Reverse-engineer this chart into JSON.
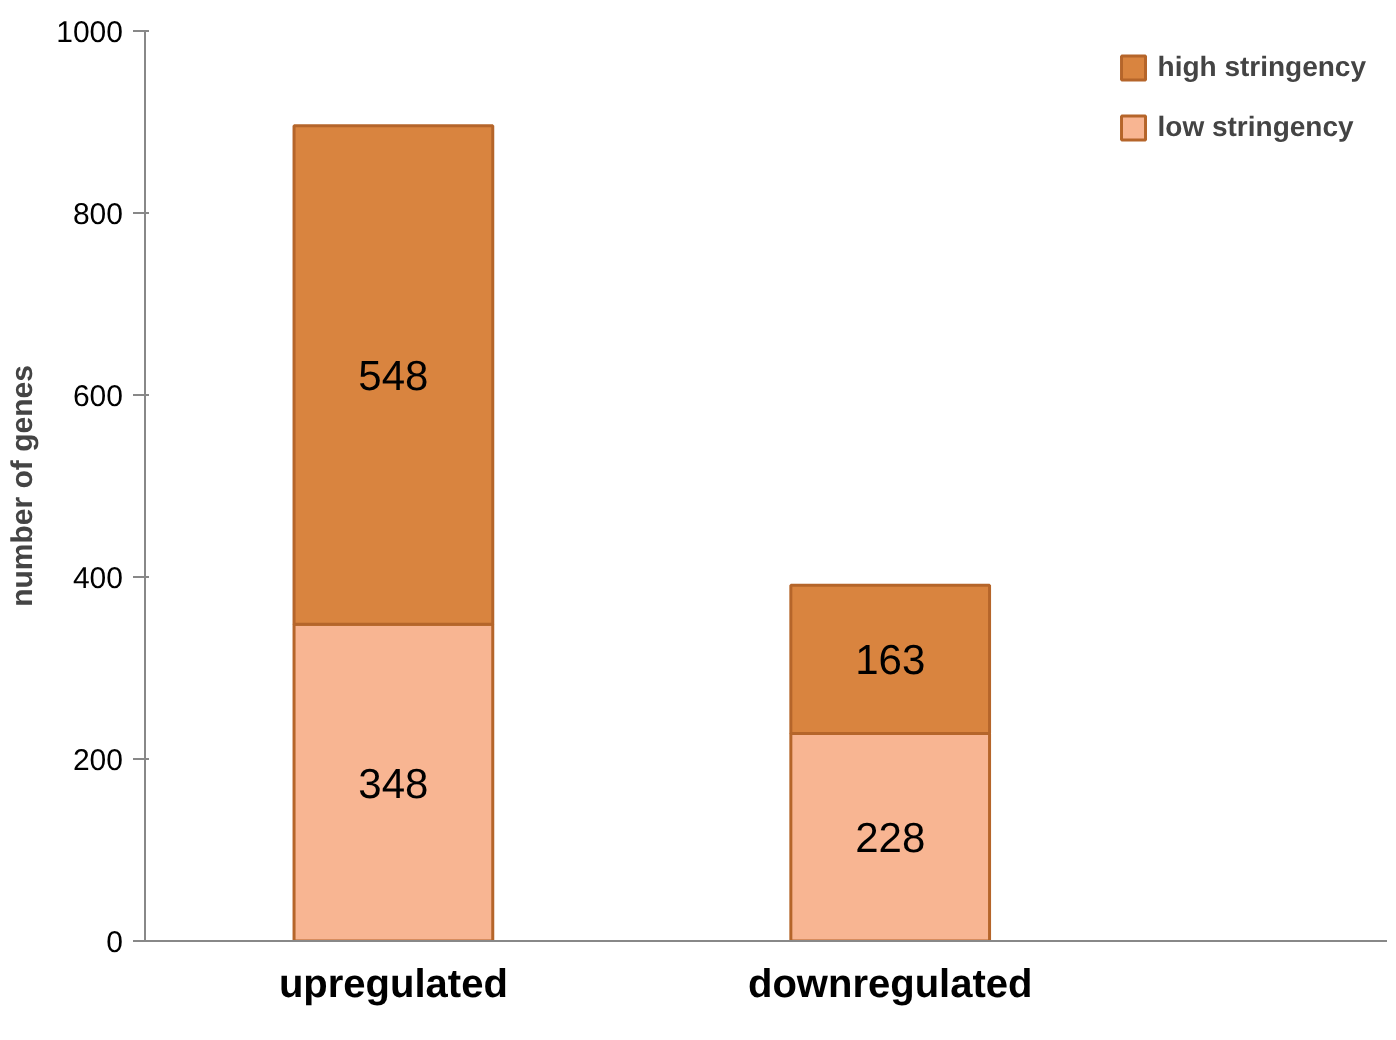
{
  "chart_data": {
    "type": "bar",
    "stacked": true,
    "categories": [
      "upregulated",
      "downregulated"
    ],
    "ylabel": "number of genes",
    "ylim": [
      0,
      1000
    ],
    "yticks": [
      0,
      200,
      400,
      600,
      800,
      1000
    ],
    "series": [
      {
        "name": "low stringency",
        "color": "#f8b592",
        "values": [
          348,
          228
        ]
      },
      {
        "name": "high stringency",
        "color": "#d9843f",
        "values": [
          548,
          163
        ]
      }
    ],
    "data_labels": true,
    "legend": "top right",
    "grid": false
  }
}
